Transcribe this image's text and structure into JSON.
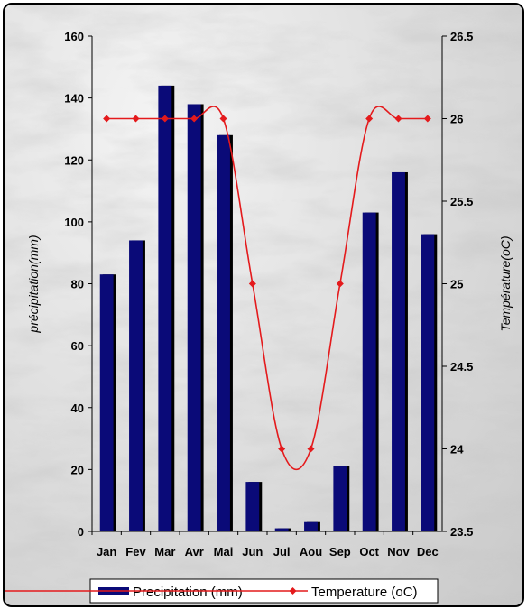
{
  "chart_data": {
    "type": "bar",
    "categories": [
      "Jan",
      "Fev",
      "Mar",
      "Avr",
      "Mai",
      "Jun",
      "Jul",
      "Aou",
      "Sep",
      "Oct",
      "Nov",
      "Dec"
    ],
    "series": [
      {
        "name": "Precipitation (mm)",
        "type": "bar",
        "axis": "left",
        "color": "#0a0a78",
        "values": [
          83,
          94,
          144,
          138,
          128,
          16,
          1,
          3,
          21,
          103,
          116,
          96
        ]
      },
      {
        "name": "Temperature (oC)",
        "type": "line",
        "axis": "right",
        "color": "#e41a1c",
        "values": [
          26,
          26,
          26,
          26,
          26,
          25,
          24,
          24,
          25,
          26,
          26,
          26
        ]
      }
    ],
    "ylabel": "précipitation(mm)",
    "y2label": "Température(oC)",
    "ylim": [
      0,
      160
    ],
    "y2lim": [
      23.5,
      26.5
    ],
    "yticks": [
      0,
      20,
      40,
      60,
      80,
      100,
      120,
      140,
      160
    ],
    "y2ticks": [
      "23.5",
      "24",
      "24.5",
      "25",
      "25.5",
      "26",
      "26.5"
    ],
    "legend_position": "bottom",
    "grid": false
  },
  "legend": {
    "precip_label": "Precipitation (mm)",
    "temp_label": "Temperature (oC)"
  }
}
